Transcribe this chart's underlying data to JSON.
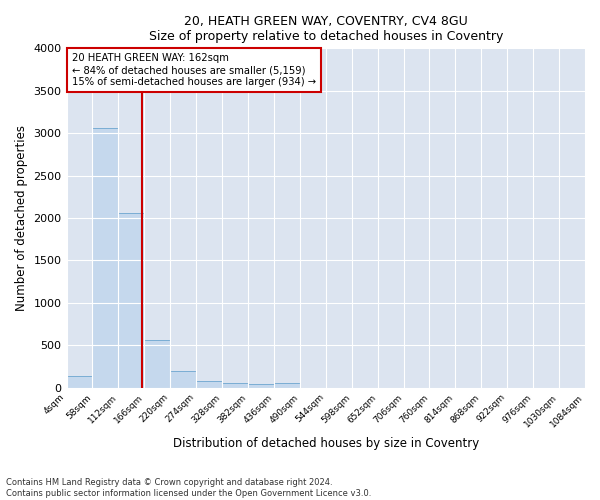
{
  "title1": "20, HEATH GREEN WAY, COVENTRY, CV4 8GU",
  "title2": "Size of property relative to detached houses in Coventry",
  "xlabel": "Distribution of detached houses by size in Coventry",
  "ylabel": "Number of detached properties",
  "annotation_line1": "20 HEATH GREEN WAY: 162sqm",
  "annotation_line2": "← 84% of detached houses are smaller (5,159)",
  "annotation_line3": "15% of semi-detached houses are larger (934) →",
  "bin_edges": [
    4,
    58,
    112,
    166,
    220,
    274,
    328,
    382,
    436,
    490,
    544,
    598,
    652,
    706,
    760,
    814,
    868,
    922,
    976,
    1030,
    1084
  ],
  "bin_counts": [
    140,
    3060,
    2060,
    560,
    200,
    80,
    55,
    40,
    50,
    0,
    0,
    0,
    0,
    0,
    0,
    0,
    0,
    0,
    0,
    0
  ],
  "bar_color": "#c5d8ed",
  "bar_edge_color": "#7aadd4",
  "vline_x": 162,
  "vline_color": "#cc0000",
  "annotation_box_color": "#cc0000",
  "ylim": [
    0,
    4000
  ],
  "yticks": [
    0,
    500,
    1000,
    1500,
    2000,
    2500,
    3000,
    3500,
    4000
  ],
  "plot_background_color": "#dce4f0",
  "fig_background_color": "#ffffff",
  "grid_color": "#ffffff",
  "footer1": "Contains HM Land Registry data © Crown copyright and database right 2024.",
  "footer2": "Contains public sector information licensed under the Open Government Licence v3.0."
}
